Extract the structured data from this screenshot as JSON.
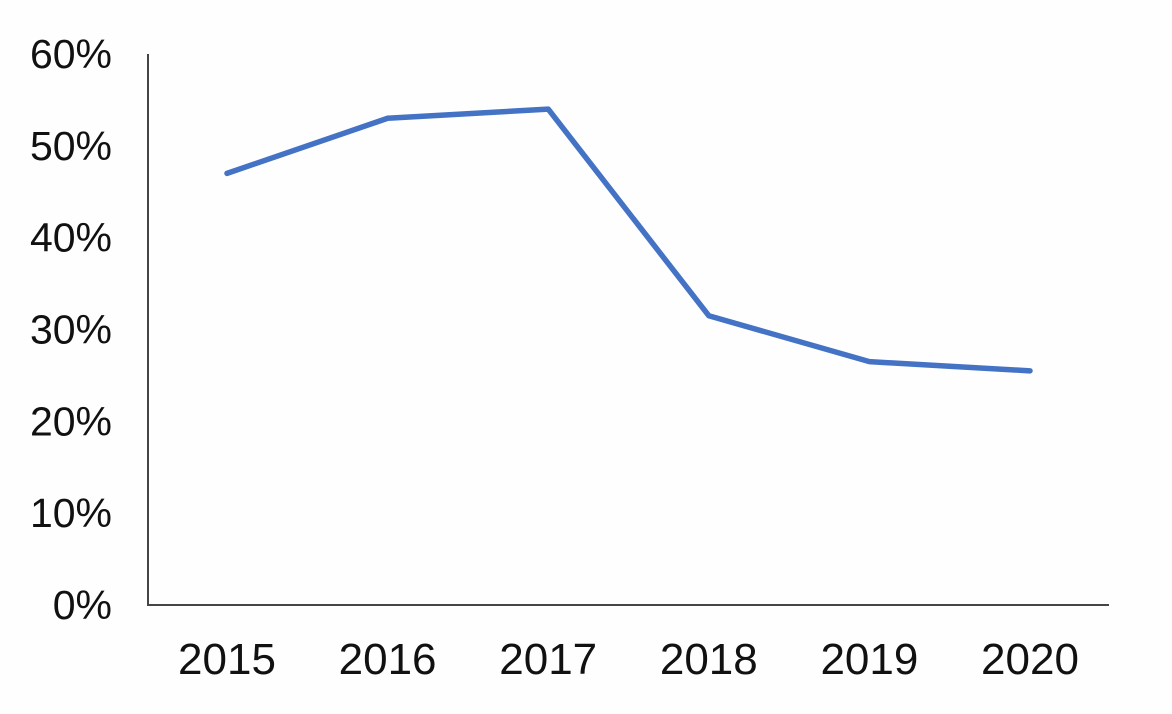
{
  "chart_data": {
    "type": "line",
    "title": "",
    "xlabel": "",
    "ylabel": "",
    "categories": [
      "2015",
      "2016",
      "2017",
      "2018",
      "2019",
      "2020"
    ],
    "values": [
      47,
      53,
      54,
      31.5,
      26.5,
      25.5
    ],
    "y_ticks": [
      "0%",
      "10%",
      "20%",
      "30%",
      "40%",
      "50%",
      "60%"
    ],
    "y_tick_values": [
      0,
      10,
      20,
      30,
      40,
      50,
      60
    ],
    "ylim": [
      0,
      60
    ],
    "grid": false,
    "legend": false,
    "line_color": "#4472c4",
    "axis_color": "#454545",
    "label_color": "#111111",
    "background": "#fefefe"
  }
}
